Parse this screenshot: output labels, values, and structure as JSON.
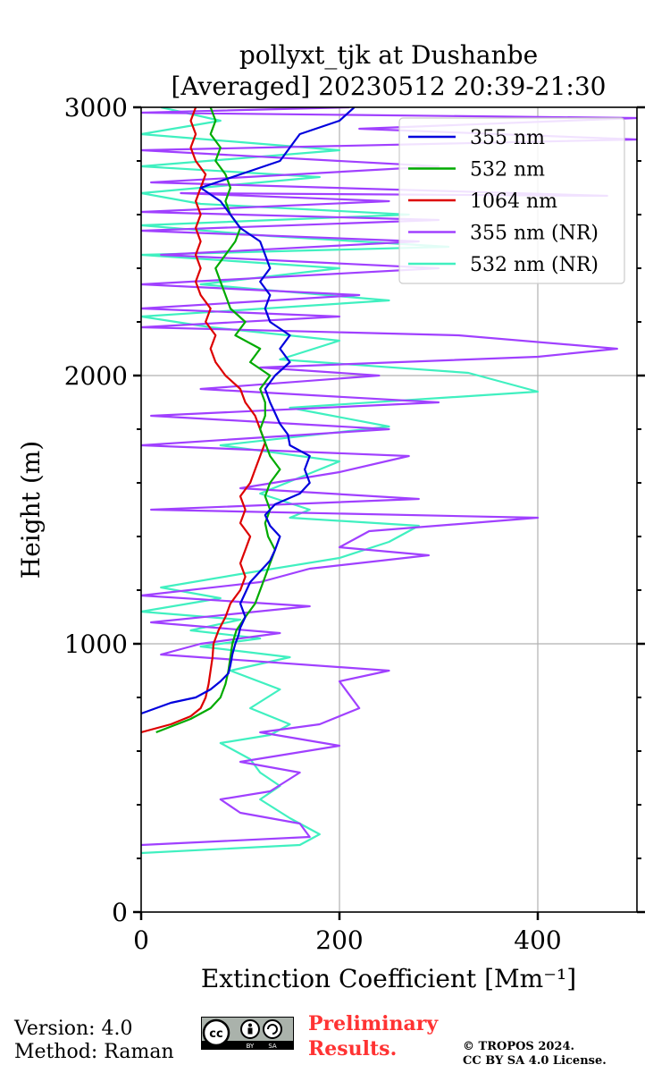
{
  "chart_data": {
    "type": "line",
    "title_line1": "pollyxt_tjk at Dushanbe",
    "title_line2": "[Averaged] 20230512 20:39-21:30",
    "xlabel": "Extinction Coefficient [Mm⁻¹]",
    "ylabel": "Height (m)",
    "xlim": [
      0,
      500
    ],
    "ylim": [
      0,
      3000
    ],
    "xticks": [
      "0",
      "200",
      "400"
    ],
    "xtick_values": [
      0,
      200,
      400
    ],
    "yticks": [
      "0",
      "1000",
      "2000",
      "3000"
    ],
    "ytick_values": [
      0,
      1000,
      2000,
      3000
    ],
    "grid": true,
    "legend_position": "top-right",
    "series": [
      {
        "name": "355 nm",
        "color": "#0000dd",
        "points": [
          [
            0,
            740
          ],
          [
            30,
            780
          ],
          [
            55,
            800
          ],
          [
            70,
            830
          ],
          [
            80,
            860
          ],
          [
            88,
            890
          ],
          [
            90,
            920
          ],
          [
            92,
            960
          ],
          [
            95,
            1000
          ],
          [
            98,
            1030
          ],
          [
            100,
            1060
          ],
          [
            105,
            1100
          ],
          [
            100,
            1150
          ],
          [
            105,
            1190
          ],
          [
            110,
            1230
          ],
          [
            120,
            1270
          ],
          [
            130,
            1310
          ],
          [
            135,
            1350
          ],
          [
            140,
            1400
          ],
          [
            130,
            1440
          ],
          [
            125,
            1480
          ],
          [
            135,
            1520
          ],
          [
            160,
            1560
          ],
          [
            170,
            1600
          ],
          [
            165,
            1650
          ],
          [
            170,
            1700
          ],
          [
            150,
            1740
          ],
          [
            148,
            1780
          ],
          [
            140,
            1820
          ],
          [
            135,
            1860
          ],
          [
            130,
            1900
          ],
          [
            125,
            1950
          ],
          [
            135,
            2000
          ],
          [
            150,
            2050
          ],
          [
            140,
            2100
          ],
          [
            150,
            2150
          ],
          [
            130,
            2200
          ],
          [
            125,
            2250
          ],
          [
            130,
            2300
          ],
          [
            120,
            2350
          ],
          [
            130,
            2400
          ],
          [
            125,
            2450
          ],
          [
            120,
            2500
          ],
          [
            100,
            2550
          ],
          [
            90,
            2600
          ],
          [
            80,
            2650
          ],
          [
            60,
            2700
          ],
          [
            100,
            2750
          ],
          [
            140,
            2800
          ],
          [
            150,
            2850
          ],
          [
            160,
            2900
          ],
          [
            200,
            2950
          ],
          [
            215,
            3000
          ]
        ]
      },
      {
        "name": "532 nm",
        "color": "#00aa00",
        "points": [
          [
            15,
            670
          ],
          [
            50,
            720
          ],
          [
            70,
            760
          ],
          [
            80,
            800
          ],
          [
            85,
            850
          ],
          [
            88,
            900
          ],
          [
            90,
            950
          ],
          [
            92,
            1000
          ],
          [
            96,
            1050
          ],
          [
            105,
            1100
          ],
          [
            115,
            1150
          ],
          [
            120,
            1200
          ],
          [
            125,
            1250
          ],
          [
            130,
            1300
          ],
          [
            135,
            1350
          ],
          [
            128,
            1400
          ],
          [
            125,
            1450
          ],
          [
            130,
            1500
          ],
          [
            125,
            1550
          ],
          [
            130,
            1600
          ],
          [
            140,
            1650
          ],
          [
            130,
            1700
          ],
          [
            125,
            1750
          ],
          [
            120,
            1800
          ],
          [
            125,
            1850
          ],
          [
            125,
            1900
          ],
          [
            120,
            1950
          ],
          [
            130,
            2000
          ],
          [
            110,
            2050
          ],
          [
            120,
            2100
          ],
          [
            95,
            2150
          ],
          [
            105,
            2200
          ],
          [
            90,
            2250
          ],
          [
            85,
            2300
          ],
          [
            80,
            2350
          ],
          [
            75,
            2400
          ],
          [
            85,
            2450
          ],
          [
            95,
            2500
          ],
          [
            100,
            2550
          ],
          [
            90,
            2600
          ],
          [
            85,
            2650
          ],
          [
            90,
            2700
          ],
          [
            85,
            2750
          ],
          [
            75,
            2800
          ],
          [
            80,
            2850
          ],
          [
            70,
            2900
          ],
          [
            75,
            2950
          ],
          [
            70,
            3000
          ]
        ]
      },
      {
        "name": "1064 nm",
        "color": "#dd0000",
        "points": [
          [
            0,
            670
          ],
          [
            30,
            700
          ],
          [
            50,
            730
          ],
          [
            60,
            760
          ],
          [
            65,
            800
          ],
          [
            68,
            850
          ],
          [
            70,
            900
          ],
          [
            72,
            950
          ],
          [
            73,
            1000
          ],
          [
            78,
            1050
          ],
          [
            85,
            1100
          ],
          [
            90,
            1150
          ],
          [
            100,
            1200
          ],
          [
            105,
            1250
          ],
          [
            100,
            1300
          ],
          [
            105,
            1350
          ],
          [
            110,
            1400
          ],
          [
            100,
            1450
          ],
          [
            105,
            1500
          ],
          [
            100,
            1550
          ],
          [
            110,
            1600
          ],
          [
            115,
            1650
          ],
          [
            120,
            1700
          ],
          [
            125,
            1750
          ],
          [
            120,
            1800
          ],
          [
            115,
            1850
          ],
          [
            105,
            1900
          ],
          [
            100,
            1950
          ],
          [
            85,
            2000
          ],
          [
            75,
            2050
          ],
          [
            70,
            2100
          ],
          [
            75,
            2150
          ],
          [
            65,
            2200
          ],
          [
            70,
            2250
          ],
          [
            60,
            2300
          ],
          [
            55,
            2350
          ],
          [
            60,
            2400
          ],
          [
            55,
            2450
          ],
          [
            60,
            2500
          ],
          [
            55,
            2550
          ],
          [
            60,
            2600
          ],
          [
            55,
            2650
          ],
          [
            60,
            2700
          ],
          [
            65,
            2750
          ],
          [
            55,
            2800
          ],
          [
            50,
            2850
          ],
          [
            55,
            2900
          ],
          [
            50,
            2950
          ],
          [
            55,
            3000
          ]
        ]
      },
      {
        "name": "355 nm (NR)",
        "color": "#a040ff",
        "points": [
          [
            0,
            250
          ],
          [
            170,
            280
          ],
          [
            160,
            330
          ],
          [
            100,
            370
          ],
          [
            80,
            420
          ],
          [
            130,
            450
          ],
          [
            160,
            520
          ],
          [
            100,
            560
          ],
          [
            200,
            620
          ],
          [
            120,
            670
          ],
          [
            180,
            700
          ],
          [
            220,
            760
          ],
          [
            200,
            860
          ],
          [
            250,
            900
          ],
          [
            20,
            960
          ],
          [
            60,
            1000
          ],
          [
            140,
            1040
          ],
          [
            10,
            1080
          ],
          [
            170,
            1140
          ],
          [
            0,
            1180
          ],
          [
            120,
            1230
          ],
          [
            170,
            1280
          ],
          [
            290,
            1330
          ],
          [
            200,
            1360
          ],
          [
            230,
            1420
          ],
          [
            400,
            1470
          ],
          [
            10,
            1500
          ],
          [
            280,
            1540
          ],
          [
            100,
            1580
          ],
          [
            200,
            1640
          ],
          [
            270,
            1700
          ],
          [
            0,
            1740
          ],
          [
            250,
            1800
          ],
          [
            10,
            1850
          ],
          [
            300,
            1900
          ],
          [
            60,
            1950
          ],
          [
            240,
            2000
          ],
          [
            120,
            2030
          ],
          [
            400,
            2070
          ],
          [
            480,
            2100
          ],
          [
            320,
            2150
          ],
          [
            0,
            2180
          ],
          [
            200,
            2220
          ],
          [
            0,
            2250
          ],
          [
            220,
            2300
          ],
          [
            0,
            2340
          ],
          [
            300,
            2400
          ],
          [
            20,
            2450
          ],
          [
            280,
            2500
          ],
          [
            0,
            2540
          ],
          [
            300,
            2580
          ],
          [
            0,
            2610
          ],
          [
            250,
            2650
          ],
          [
            40,
            2680
          ],
          [
            470,
            2670
          ],
          [
            10,
            2720
          ],
          [
            300,
            2780
          ],
          [
            0,
            2840
          ],
          [
            500,
            2880
          ],
          [
            220,
            2920
          ],
          [
            500,
            2960
          ],
          [
            0,
            2980
          ],
          [
            210,
            3000
          ]
        ]
      },
      {
        "name": "532 nm (NR)",
        "color": "#40f0c0",
        "points": [
          [
            0,
            220
          ],
          [
            160,
            250
          ],
          [
            180,
            290
          ],
          [
            150,
            350
          ],
          [
            120,
            420
          ],
          [
            140,
            470
          ],
          [
            120,
            520
          ],
          [
            110,
            570
          ],
          [
            80,
            630
          ],
          [
            130,
            660
          ],
          [
            150,
            700
          ],
          [
            110,
            760
          ],
          [
            140,
            830
          ],
          [
            90,
            900
          ],
          [
            150,
            950
          ],
          [
            60,
            990
          ],
          [
            120,
            1020
          ],
          [
            50,
            1050
          ],
          [
            100,
            1090
          ],
          [
            0,
            1120
          ],
          [
            80,
            1170
          ],
          [
            20,
            1210
          ],
          [
            100,
            1260
          ],
          [
            200,
            1320
          ],
          [
            250,
            1380
          ],
          [
            280,
            1440
          ],
          [
            150,
            1470
          ],
          [
            170,
            1500
          ],
          [
            120,
            1560
          ],
          [
            160,
            1620
          ],
          [
            200,
            1680
          ],
          [
            80,
            1740
          ],
          [
            250,
            1810
          ],
          [
            150,
            1880
          ],
          [
            400,
            1940
          ],
          [
            330,
            2010
          ],
          [
            140,
            2060
          ],
          [
            200,
            2130
          ],
          [
            70,
            2180
          ],
          [
            0,
            2220
          ],
          [
            250,
            2280
          ],
          [
            60,
            2340
          ],
          [
            200,
            2400
          ],
          [
            0,
            2450
          ],
          [
            310,
            2480
          ],
          [
            130,
            2520
          ],
          [
            0,
            2560
          ],
          [
            270,
            2600
          ],
          [
            60,
            2640
          ],
          [
            0,
            2680
          ],
          [
            180,
            2740
          ],
          [
            0,
            2780
          ],
          [
            200,
            2840
          ],
          [
            0,
            2900
          ],
          [
            80,
            2950
          ],
          [
            20,
            3000
          ]
        ]
      }
    ]
  },
  "footer": {
    "version": "Version: 4.0",
    "method": "Method: Raman",
    "preliminary_line1": "Preliminary",
    "preliminary_line2": "Results.",
    "copyright_line1": "© TROPOS 2024.",
    "copyright_line2": "CC BY SA 4.0 License.",
    "cc_by": "BY",
    "cc_sa": "SA"
  }
}
